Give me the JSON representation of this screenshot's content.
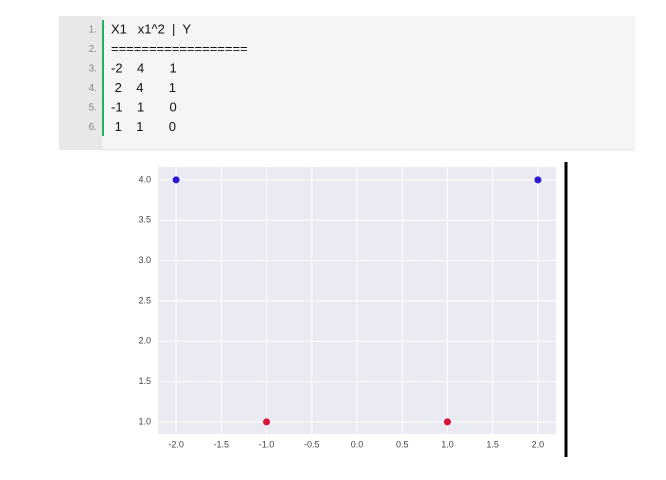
{
  "code": {
    "lines": [
      {
        "number": "1.",
        "text": "X1   x1^2  |  Y"
      },
      {
        "number": "2.",
        "text": "=================="
      },
      {
        "number": "3.",
        "text": "-2    4       1"
      },
      {
        "number": "4.",
        "text": " 2    4       1"
      },
      {
        "number": "5.",
        "text": "-1    1       0"
      },
      {
        "number": "6.",
        "text": " 1    1       0"
      }
    ]
  },
  "chart_data": {
    "type": "scatter",
    "series": [
      {
        "color": "#2c17d4",
        "x": [
          -2,
          2
        ],
        "values": [
          4,
          4
        ]
      },
      {
        "color": "#d8143a",
        "x": [
          -1,
          1
        ],
        "values": [
          1,
          1
        ]
      }
    ],
    "xlim": [
      -2.2,
      2.2
    ],
    "ylim": [
      0.85,
      4.16
    ],
    "xticks": [
      {
        "value": -2,
        "label": "-2.0"
      },
      {
        "value": -1.5,
        "label": "-1.5"
      },
      {
        "value": -1,
        "label": "-1.0"
      },
      {
        "value": -0.5,
        "label": "-0.5"
      },
      {
        "value": 0,
        "label": "0.0"
      },
      {
        "value": 0.5,
        "label": "0.5"
      },
      {
        "value": 1,
        "label": "1.0"
      },
      {
        "value": 1.5,
        "label": "1.5"
      },
      {
        "value": 2,
        "label": "2.0"
      }
    ],
    "yticks": [
      {
        "value": 1,
        "label": "1.0"
      },
      {
        "value": 1.5,
        "label": "1.5"
      },
      {
        "value": 2,
        "label": "2.0"
      },
      {
        "value": 2.5,
        "label": "2.5"
      },
      {
        "value": 3,
        "label": "3.0"
      },
      {
        "value": 3.5,
        "label": "3.5"
      },
      {
        "value": 4,
        "label": "4.0"
      }
    ],
    "grid": true
  }
}
